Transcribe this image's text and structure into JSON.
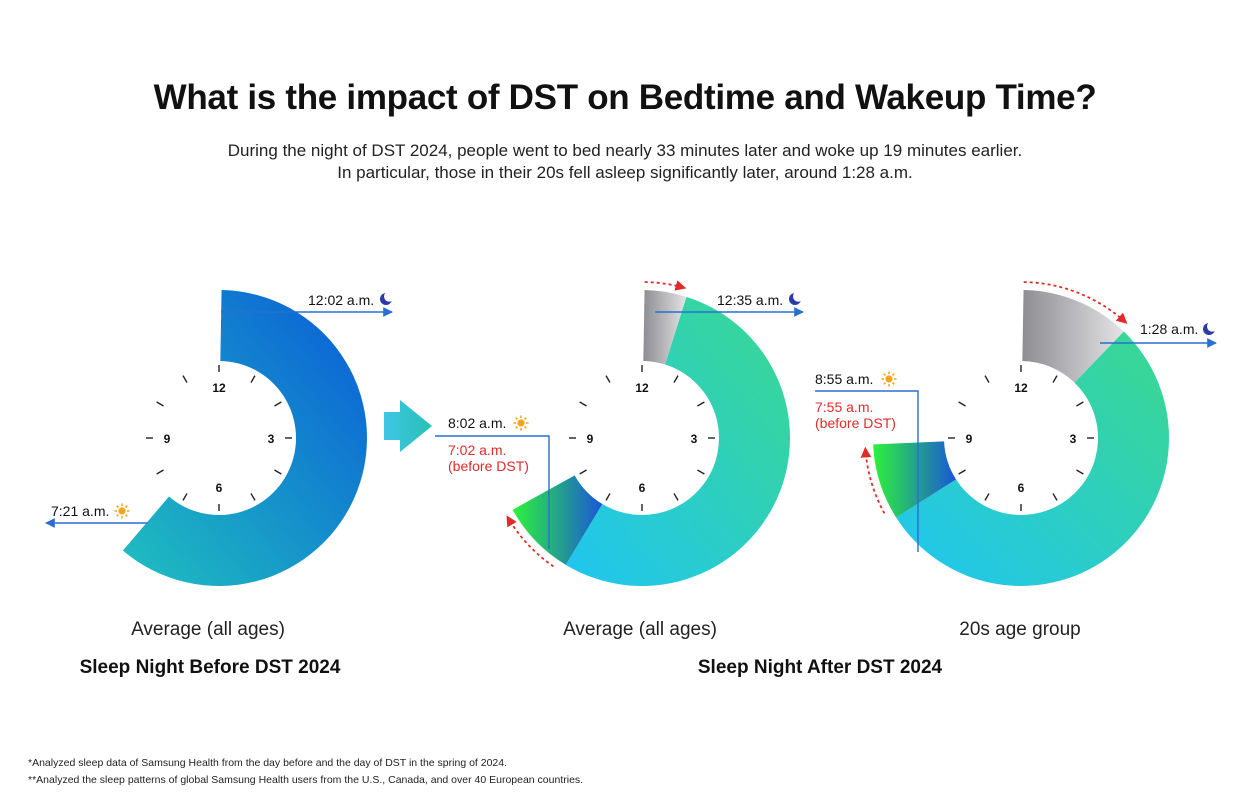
{
  "title": "What is the impact of DST on Bedtime and Wakeup Time?",
  "subtitle_lines": [
    "During the night of DST 2024, people went to bed nearly 33 minutes later and woke up 19 minutes earlier.",
    "In particular, those in their 20s fell asleep significantly later, around 1:28 a.m."
  ],
  "groups": {
    "before": "Sleep Night Before DST 2024",
    "after": "Sleep Night After DST 2024"
  },
  "clock_numbers": [
    "12",
    "3",
    "6",
    "9"
  ],
  "colors": {
    "before_start": "#1fc0bf",
    "before_end": "#0a5bd8",
    "after_start": "#1fc5f2",
    "after_end": "#3bd88e",
    "gray_shift": "#a9a9ad",
    "wake_shift_start": "#1a56d8",
    "wake_shift_end": "#2df23a",
    "arrow_line": "#2a6fd0",
    "shift_text": "#e12b2b",
    "arrow_block": "#2bb7d8"
  },
  "chart_data": [
    {
      "type": "radial-clock",
      "label": "Average (all ages)",
      "group": "Sleep Night Before DST 2024",
      "clock_hours": 12,
      "bedtime": {
        "label": "12:02 a.m.",
        "hour": 0.033
      },
      "wakeup": {
        "label": "7:21 a.m.",
        "hour": 7.35
      }
    },
    {
      "type": "radial-clock",
      "label": "Average (all ages)",
      "group": "Sleep Night After DST 2024",
      "clock_hours": 12,
      "bedtime_before_dst_hour": 0.033,
      "bedtime": {
        "label": "12:35 a.m.",
        "hour": 0.583
      },
      "wakeup": {
        "label": "8:02 a.m.",
        "hour": 8.033
      },
      "wakeup_before_dst": {
        "label": "7:02 a.m.",
        "note": "(before DST)",
        "hour": 7.033
      }
    },
    {
      "type": "radial-clock",
      "label": "20s age group",
      "group": "Sleep Night After DST 2024",
      "clock_hours": 12,
      "bedtime_before_dst_hour": 0.033,
      "bedtime": {
        "label": "1:28 a.m.",
        "hour": 1.467
      },
      "wakeup": {
        "label": "8:55 a.m.",
        "hour": 8.917
      },
      "wakeup_before_dst": {
        "label": "7:55 a.m.",
        "note": "(before DST)",
        "hour": 7.917
      }
    }
  ],
  "footnotes": [
    "*Analyzed sleep data of Samsung Health from the day before and the day of DST in the spring of 2024.",
    "**Analyzed the sleep patterns of global Samsung Health users from the U.S., Canada, and over 40 European countries."
  ]
}
